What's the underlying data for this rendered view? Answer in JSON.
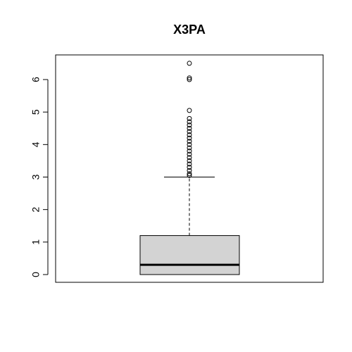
{
  "chart_data": {
    "type": "box",
    "title": "X3PA",
    "xlabel": "",
    "ylabel": "",
    "ylim": [
      -0.25,
      6.6
    ],
    "yticks": [
      0,
      1,
      2,
      3,
      4,
      5,
      6
    ],
    "ytick_labels": [
      "0",
      "1",
      "2",
      "3",
      "4",
      "5",
      "6"
    ],
    "grid": false,
    "box": {
      "min": 0,
      "q1": 0,
      "median": 0.3,
      "q3": 1.2,
      "whisker_high": 3.0,
      "outliers": [
        3.05,
        3.1,
        3.2,
        3.3,
        3.4,
        3.5,
        3.6,
        3.7,
        3.8,
        3.9,
        4.0,
        4.1,
        4.2,
        4.3,
        4.4,
        4.5,
        4.6,
        4.7,
        4.8,
        5.05,
        6.0,
        6.05,
        6.5
      ]
    },
    "colors": {
      "box_fill": "#d3d3d3",
      "line": "#000000"
    }
  }
}
